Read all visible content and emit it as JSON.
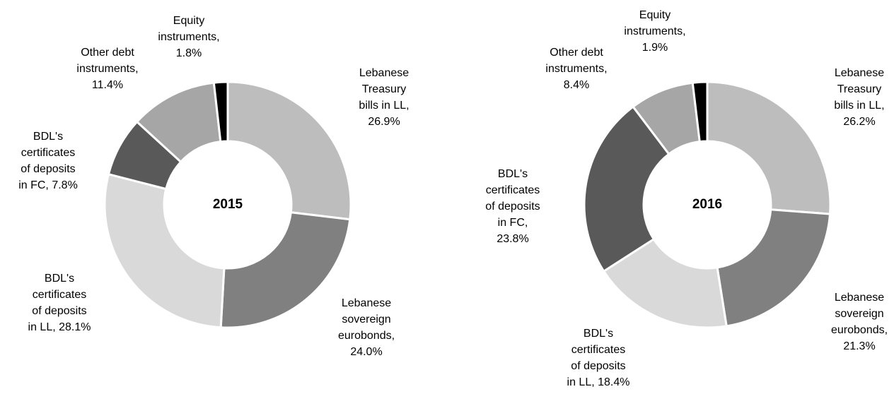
{
  "chart_data": [
    {
      "type": "donut",
      "title": "2015",
      "values": [
        26.9,
        24.0,
        28.1,
        7.8,
        11.4,
        1.8
      ],
      "value_labels": [
        [
          "Lebanese",
          "Treasury",
          "bills in LL,",
          "26.9%"
        ],
        [
          "Lebanese",
          "sovereign",
          "eurobonds,",
          "24.0%"
        ],
        [
          "BDL's",
          "certificates",
          "of deposits",
          "in LL, 28.1%"
        ],
        [
          "BDL's",
          "certificates",
          "of deposits",
          "in FC, 7.8%"
        ],
        [
          "Other debt",
          "instruments,",
          "11.4%"
        ],
        [
          "Equity",
          "instruments,",
          "1.8%"
        ]
      ],
      "colors": [
        "#bdbdbd",
        "#808080",
        "#d9d9d9",
        "#595959",
        "#a6a6a6",
        "#000000"
      ]
    },
    {
      "type": "donut",
      "title": "2016",
      "values": [
        26.2,
        21.3,
        18.4,
        23.8,
        8.4,
        1.9
      ],
      "value_labels": [
        [
          "Lebanese",
          "Treasury",
          "bills in LL,",
          "26.2%"
        ],
        [
          "Lebanese",
          "sovereign",
          "eurobonds,",
          "21.3%"
        ],
        [
          "BDL's",
          "certificates",
          "of deposits",
          "in LL, 18.4%"
        ],
        [
          "BDL's",
          "certificates",
          "of deposits",
          "in FC,",
          "23.8%"
        ],
        [
          "Other debt",
          "instruments,",
          "8.4%"
        ],
        [
          "Equity",
          "instruments,",
          "1.9%"
        ]
      ],
      "colors": [
        "#bdbdbd",
        "#808080",
        "#d9d9d9",
        "#595959",
        "#a6a6a6",
        "#000000"
      ]
    }
  ]
}
